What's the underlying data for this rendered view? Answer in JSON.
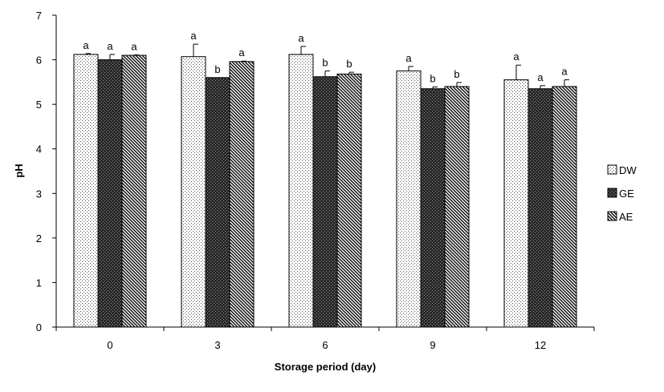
{
  "chart_data": {
    "type": "bar",
    "title": "",
    "xlabel": "Storage period (day)",
    "ylabel": "pH",
    "categories": [
      "0",
      "3",
      "6",
      "9",
      "12"
    ],
    "ylim": [
      0,
      7
    ],
    "yticks": [
      0,
      1,
      2,
      3,
      4,
      5,
      6,
      7
    ],
    "grid": false,
    "legend_position": "right",
    "series": [
      {
        "name": "DW",
        "pattern": "dots",
        "values": [
          6.12,
          6.07,
          6.12,
          5.75,
          5.55
        ],
        "errors": [
          0.02,
          0.28,
          0.18,
          0.1,
          0.33
        ],
        "letters": [
          "a",
          "a",
          "a",
          "a",
          "a"
        ]
      },
      {
        "name": "GE",
        "pattern": "dark-cross",
        "values": [
          6.0,
          5.6,
          5.62,
          5.35,
          5.35
        ],
        "errors": [
          0.12,
          0.0,
          0.13,
          0.04,
          0.07
        ],
        "letters": [
          "a",
          "b",
          "b",
          "b",
          "a"
        ]
      },
      {
        "name": "AE",
        "pattern": "diagonal",
        "values": [
          6.1,
          5.96,
          5.68,
          5.4,
          5.4
        ],
        "errors": [
          0.01,
          0.01,
          0.04,
          0.09,
          0.15
        ],
        "letters": [
          "a",
          "a",
          "b",
          "b",
          "a"
        ]
      }
    ]
  }
}
